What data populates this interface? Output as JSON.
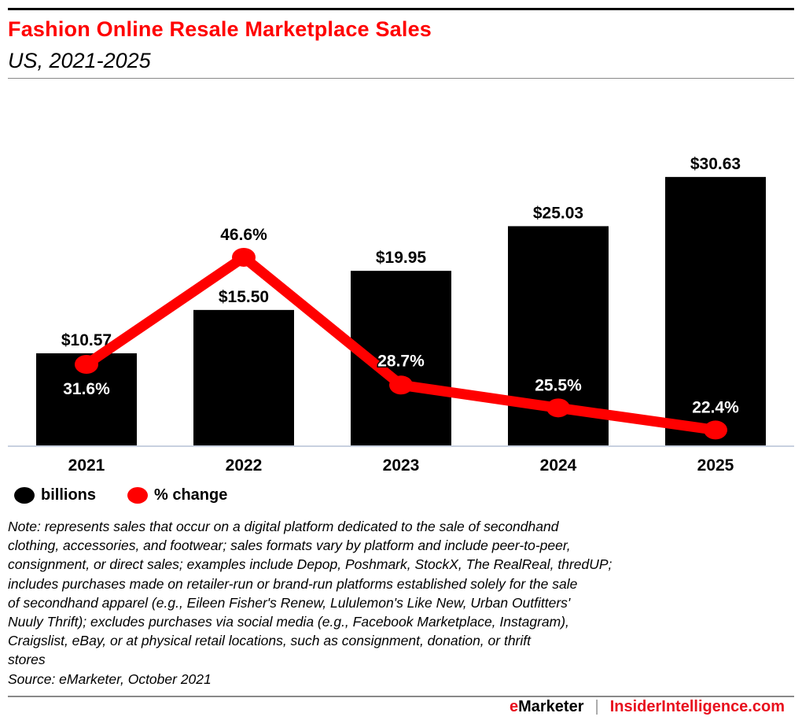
{
  "header": {
    "title": "Fashion Online Resale Marketplace Sales",
    "subtitle": "US, 2021-2025"
  },
  "chart_data": {
    "type": "bar",
    "title": "Fashion Online Resale Marketplace Sales",
    "subtitle": "US, 2021-2025",
    "categories": [
      "2021",
      "2022",
      "2023",
      "2024",
      "2025"
    ],
    "series": [
      {
        "name": "billions",
        "type": "bar",
        "color": "#000000",
        "values": [
          10.57,
          15.5,
          19.95,
          25.03,
          30.63
        ],
        "labels": [
          "$10.57",
          "$15.50",
          "$19.95",
          "$25.03",
          "$30.63"
        ]
      },
      {
        "name": "% change",
        "type": "line",
        "color": "#ff0000",
        "values": [
          31.6,
          46.6,
          28.7,
          25.5,
          22.4
        ],
        "labels": [
          "31.6%",
          "46.6%",
          "28.7%",
          "25.5%",
          "22.4%"
        ]
      }
    ],
    "xlabel": "",
    "ylabel": "",
    "grid": false,
    "legend": "bottom-left"
  },
  "legend": [
    {
      "label": "billions",
      "color": "#000000"
    },
    {
      "label": "% change",
      "color": "#ff0000"
    }
  ],
  "note": {
    "lines": [
      "Note: represents sales that occur on a digital platform dedicated to the sale of secondhand",
      "clothing, accessories, and footwear; sales formats vary by platform and include peer-to-peer,",
      "consignment, or direct sales; examples include Depop, Poshmark, StockX, The RealReal, thredUP;",
      "includes purchases made on retailer-run or brand-run platforms established solely for the sale",
      "of secondhand apparel (e.g., Eileen Fisher's Renew, Lululemon's Like New, Urban Outfitters'",
      "Nuuly Thrift); excludes purchases via social media (e.g., Facebook Marketplace, Instagram),",
      "Craigslist, eBay, or at physical retail locations, such as consignment, donation, or thrift",
      "stores"
    ],
    "source": "Source: eMarketer, October 2021"
  },
  "footer": {
    "brand_e": "e",
    "brand_rest": "Marketer",
    "separator": "|",
    "site": "InsiderIntelligence.com"
  }
}
